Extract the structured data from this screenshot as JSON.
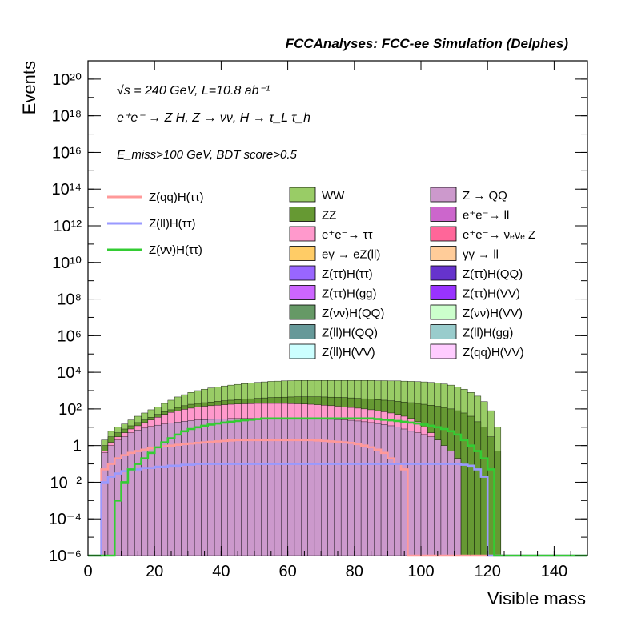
{
  "header": {
    "title": "FCCAnalyses: FCC-ee Simulation (Delphes)"
  },
  "annotations": {
    "line1": "√s = 240 GeV, L=10.8 ab⁻¹",
    "line2": "e⁺e⁻ → Z H, Z → νν, H → τ_L τ_h",
    "line3": "E_miss>100 GeV, BDT score>0.5"
  },
  "chart_data": {
    "type": "area",
    "title": "",
    "xlabel": "Visible mass",
    "ylabel": "Events",
    "xlim": [
      0,
      150
    ],
    "ylim": [
      1e-06,
      1e+21
    ],
    "y_scale": "log",
    "x_ticks": [
      "0",
      "20",
      "40",
      "60",
      "80",
      "100",
      "120",
      "140"
    ],
    "y_ticks": [
      "10⁻⁶",
      "10⁻⁴",
      "10⁻²",
      "1",
      "10²",
      "10⁴",
      "10⁶",
      "10⁸",
      "10¹⁰",
      "10¹²",
      "10¹⁴",
      "10¹⁶",
      "10¹⁸",
      "10²⁰"
    ],
    "x_bins": [
      0,
      2,
      4,
      6,
      8,
      10,
      12,
      14,
      16,
      18,
      20,
      22,
      24,
      26,
      28,
      30,
      32,
      34,
      36,
      38,
      40,
      42,
      44,
      46,
      48,
      50,
      52,
      54,
      56,
      58,
      60,
      62,
      64,
      66,
      68,
      70,
      72,
      74,
      76,
      78,
      80,
      82,
      84,
      86,
      88,
      90,
      92,
      94,
      96,
      98,
      100,
      102,
      104,
      106,
      108,
      110,
      112,
      114,
      116,
      118,
      120,
      122,
      124,
      126,
      128,
      130,
      132,
      134,
      136,
      138,
      140,
      142,
      144,
      146,
      148
    ],
    "stacked_envelopes": [
      {
        "name": "WW",
        "color": "#99cc66",
        "values": [
          0,
          0,
          2,
          6,
          10,
          15,
          25,
          40,
          60,
          90,
          130,
          200,
          300,
          450,
          600,
          800,
          1000,
          1200,
          1400,
          1600,
          1800,
          2000,
          2200,
          2400,
          2600,
          2800,
          3000,
          3200,
          3300,
          3400,
          3500,
          3600,
          3600,
          3600,
          3600,
          3600,
          3600,
          3600,
          3600,
          3600,
          3600,
          3600,
          3600,
          3500,
          3500,
          3400,
          3400,
          3300,
          3200,
          3100,
          3000,
          2800,
          2600,
          2300,
          2000,
          1600,
          1200,
          800,
          500,
          250,
          80,
          10,
          0,
          0,
          0,
          0,
          0,
          0,
          0,
          0,
          0,
          0,
          0,
          0,
          0
        ]
      },
      {
        "name": "ZZ",
        "color": "#669933",
        "values": [
          0,
          0,
          1,
          3,
          5,
          8,
          12,
          18,
          25,
          35,
          50,
          70,
          90,
          120,
          150,
          180,
          200,
          220,
          240,
          260,
          280,
          300,
          320,
          340,
          360,
          380,
          400,
          420,
          430,
          440,
          450,
          460,
          460,
          460,
          460,
          450,
          440,
          430,
          420,
          400,
          380,
          360,
          340,
          320,
          300,
          280,
          260,
          240,
          220,
          200,
          180,
          160,
          140,
          120,
          100,
          80,
          60,
          40,
          20,
          10,
          3,
          0.5,
          0,
          0,
          0,
          0,
          0,
          0,
          0,
          0,
          0,
          0,
          0,
          0,
          0
        ]
      },
      {
        "name": "e⁺e⁻→ ττ",
        "color": "#ff99cc",
        "values": [
          0,
          0,
          0.5,
          1.5,
          3,
          5,
          8,
          12,
          18,
          25,
          35,
          50,
          65,
          80,
          95,
          110,
          125,
          140,
          150,
          160,
          170,
          180,
          185,
          190,
          195,
          200,
          200,
          200,
          200,
          200,
          195,
          190,
          185,
          180,
          170,
          160,
          150,
          140,
          130,
          120,
          110,
          100,
          90,
          80,
          70,
          60,
          50,
          40,
          30,
          20,
          10,
          5,
          2,
          0.5,
          0.2,
          0.1,
          0,
          0,
          0,
          0,
          0,
          0,
          0,
          0,
          0,
          0,
          0,
          0,
          0,
          0,
          0,
          0,
          0,
          0,
          0
        ]
      },
      {
        "name": "Z → QQ",
        "color": "#cc99cc",
        "values": [
          0,
          0,
          0.4,
          1,
          2,
          3,
          5,
          7,
          9,
          11,
          13,
          15,
          17,
          19,
          21,
          23,
          25,
          26,
          27,
          28,
          29,
          30,
          30,
          30,
          30,
          30,
          30,
          30,
          30,
          30,
          30,
          30,
          30,
          30,
          29,
          28,
          27,
          26,
          25,
          24,
          22,
          20,
          18,
          16,
          14,
          12,
          10,
          8,
          6,
          5,
          4,
          3,
          2,
          1,
          0.5,
          0.2,
          0,
          0,
          0,
          0,
          0,
          0,
          0,
          0,
          0,
          0,
          0,
          0,
          0,
          0,
          0,
          0,
          0,
          0,
          0
        ]
      }
    ],
    "stack_tops": [
      0,
      0,
      2,
      6,
      10,
      15,
      25,
      40,
      60,
      90,
      130,
      200,
      300,
      450,
      600,
      800,
      1000,
      1200,
      1400,
      1600,
      1800,
      2000,
      2200,
      2400,
      2600,
      2800,
      3000,
      3200,
      3300,
      3400,
      3500,
      3600,
      3600,
      3600,
      3600,
      3600,
      3600,
      3600,
      3600,
      3600,
      3600,
      3600,
      3600,
      3500,
      3500,
      3400,
      3400,
      3300,
      3200,
      3100,
      3000,
      2800,
      2600,
      2300,
      2000,
      1600,
      1200,
      800,
      500,
      250,
      80,
      10,
      0,
      0,
      0,
      0,
      0,
      0,
      0,
      0,
      0,
      0,
      0,
      0,
      0
    ],
    "overlay_lines": [
      {
        "name": "Z(qq)H(ττ)",
        "color": "#ff9999",
        "values": [
          0,
          0,
          0.05,
          0.1,
          0.2,
          0.3,
          0.4,
          0.5,
          0.6,
          0.7,
          0.8,
          0.9,
          1,
          1.1,
          1.2,
          1.3,
          1.4,
          1.5,
          1.6,
          1.7,
          1.8,
          1.9,
          2,
          2,
          2,
          2,
          2,
          2,
          2,
          2,
          2,
          2,
          2,
          2,
          1.9,
          1.8,
          1.7,
          1.6,
          1.5,
          1.4,
          1.2,
          1,
          0.8,
          0.6,
          0.4,
          0.2,
          0.1,
          0.05,
          0,
          0,
          0,
          0,
          0,
          0,
          0,
          0,
          0,
          0,
          0,
          0,
          0,
          0,
          0,
          0,
          0,
          0,
          0,
          0,
          0,
          0,
          0,
          0,
          0,
          0,
          0
        ]
      },
      {
        "name": "Z(ll)H(ττ)",
        "color": "#9999ff",
        "values": [
          0,
          0,
          0.01,
          0.02,
          0.03,
          0.04,
          0.05,
          0.05,
          0.06,
          0.06,
          0.07,
          0.07,
          0.08,
          0.08,
          0.09,
          0.09,
          0.1,
          0.1,
          0.1,
          0.1,
          0.1,
          0.1,
          0.1,
          0.1,
          0.1,
          0.1,
          0.1,
          0.1,
          0.1,
          0.1,
          0.1,
          0.1,
          0.1,
          0.1,
          0.1,
          0.1,
          0.1,
          0.1,
          0.1,
          0.1,
          0.1,
          0.1,
          0.1,
          0.1,
          0.1,
          0.1,
          0.1,
          0.1,
          0.1,
          0.1,
          0.1,
          0.1,
          0.1,
          0.1,
          0.1,
          0.1,
          0.09,
          0.08,
          0.05,
          0.02,
          0,
          0,
          0,
          0,
          0,
          0,
          0,
          0,
          0,
          0,
          0,
          0,
          0,
          0,
          0
        ]
      },
      {
        "name": "Z(νν)H(ττ)",
        "color": "#33cc33",
        "values": [
          0,
          0,
          0,
          0,
          0.001,
          0.01,
          0.05,
          0.1,
          0.2,
          0.4,
          0.8,
          1.5,
          2.5,
          4,
          6,
          8,
          10,
          12,
          14,
          16,
          18,
          20,
          22,
          24,
          26,
          28,
          30,
          30,
          30,
          30,
          30,
          30,
          30,
          30,
          30,
          30,
          30,
          30,
          30,
          30,
          30,
          30,
          30,
          28,
          26,
          24,
          22,
          20,
          18,
          16,
          14,
          12,
          10,
          8,
          6,
          4,
          2,
          1,
          0.5,
          0.2,
          0.05,
          0,
          0,
          0,
          0,
          0,
          0,
          0,
          0,
          0,
          0,
          0,
          0,
          0,
          0
        ]
      }
    ],
    "legend_lines": [
      "Z(qq)H(ττ)",
      "Z(ll)H(ττ)",
      "Z(νν)H(ττ)"
    ],
    "legend_fills": [
      {
        "label": "WW",
        "color": "#99cc66"
      },
      {
        "label": "Z → QQ",
        "color": "#cc99cc"
      },
      {
        "label": "ZZ",
        "color": "#669933"
      },
      {
        "label": "e⁺e⁻→ ll",
        "color": "#cc66cc"
      },
      {
        "label": "e⁺e⁻→ ττ",
        "color": "#ff99cc"
      },
      {
        "label": "e⁺e⁻→ νₑνₑ Z",
        "color": "#ff6699"
      },
      {
        "label": "eγ → eZ(ll)",
        "color": "#ffcc66"
      },
      {
        "label": "γγ → ll",
        "color": "#ffcc99"
      },
      {
        "label": "Z(ττ)H(ττ)",
        "color": "#9966ff"
      },
      {
        "label": "Z(ττ)H(QQ)",
        "color": "#6633cc"
      },
      {
        "label": "Z(ττ)H(gg)",
        "color": "#cc66ff"
      },
      {
        "label": "Z(ττ)H(VV)",
        "color": "#9933ff"
      },
      {
        "label": "Z(νν)H(QQ)",
        "color": "#669966"
      },
      {
        "label": "Z(νν)H(VV)",
        "color": "#ccffcc"
      },
      {
        "label": "Z(ll)H(QQ)",
        "color": "#669999"
      },
      {
        "label": "Z(ll)H(gg)",
        "color": "#99cccc"
      },
      {
        "label": "Z(ll)H(VV)",
        "color": "#ccffff"
      },
      {
        "label": "Z(qq)H(VV)",
        "color": "#ffccff"
      }
    ]
  }
}
